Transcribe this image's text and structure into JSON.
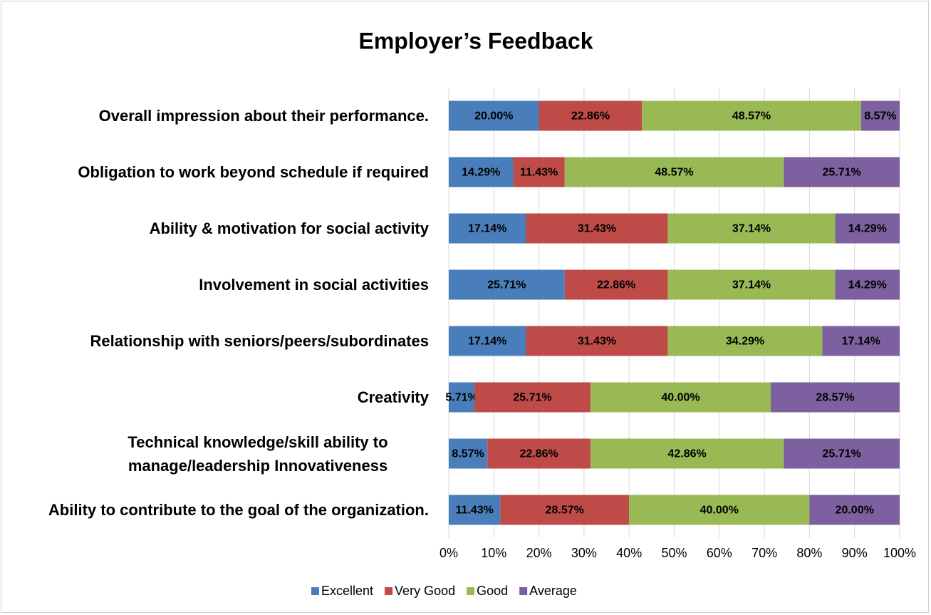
{
  "chart_data": {
    "type": "stacked_barh",
    "title": "Employer’s Feedback",
    "categories": [
      "Overall impression about their performance.",
      "Obligation to work beyond schedule if required",
      "Ability & motivation for social activity",
      "Involvement in social activities",
      "Relationship with seniors/peers/subordinates",
      "Creativity",
      "Technical knowledge/skill ability to manage/leadership Innovativeness",
      "Ability to contribute to the goal of the organization."
    ],
    "series": [
      {
        "name": "Excellent",
        "color": "#4a7ebb",
        "values": [
          20,
          14.29,
          17.14,
          25.71,
          17.14,
          5.71,
          8.57,
          11.43
        ],
        "value_labels": [
          "20.00%",
          "14.29%",
          "17.14%",
          "25.71%",
          "17.14%",
          "5.71%",
          "8.57%",
          "11.43%"
        ]
      },
      {
        "name": "Very Good",
        "color": "#be4b48",
        "values": [
          22.86,
          11.43,
          31.43,
          22.86,
          31.43,
          25.71,
          22.86,
          28.57
        ],
        "value_labels": [
          "22.86%",
          "11.43%",
          "31.43%",
          "22.86%",
          "31.43%",
          "25.71%",
          "22.86%",
          "28.57%"
        ]
      },
      {
        "name": "Good",
        "color": "#98b954",
        "values": [
          48.57,
          48.57,
          37.14,
          37.14,
          34.29,
          40,
          42.86,
          40
        ],
        "value_labels": [
          "48.57%",
          "48.57%",
          "37.14%",
          "37.14%",
          "34.29%",
          "40.00%",
          "42.86%",
          "40.00%"
        ]
      },
      {
        "name": "Average",
        "color": "#7d60a0",
        "values": [
          8.57,
          25.71,
          14.29,
          14.29,
          17.14,
          28.57,
          25.71,
          20
        ],
        "value_labels": [
          "8.57%",
          "25.71%",
          "14.29%",
          "14.29%",
          "17.14%",
          "28.57%",
          "25.71%",
          "20.00%"
        ]
      }
    ],
    "xlim": [
      0,
      100
    ],
    "xticks": [
      {
        "value": 0,
        "label": "0%"
      },
      {
        "value": 10,
        "label": "10%"
      },
      {
        "value": 20,
        "label": "20%"
      },
      {
        "value": 30,
        "label": "30%"
      },
      {
        "value": 40,
        "label": "40%"
      },
      {
        "value": 50,
        "label": "50%"
      },
      {
        "value": 60,
        "label": "60%"
      },
      {
        "value": 70,
        "label": "70%"
      },
      {
        "value": 80,
        "label": "80%"
      },
      {
        "value": 90,
        "label": "90%"
      },
      {
        "value": 100,
        "label": "100%"
      }
    ],
    "grid": true,
    "legend": "bottom"
  }
}
